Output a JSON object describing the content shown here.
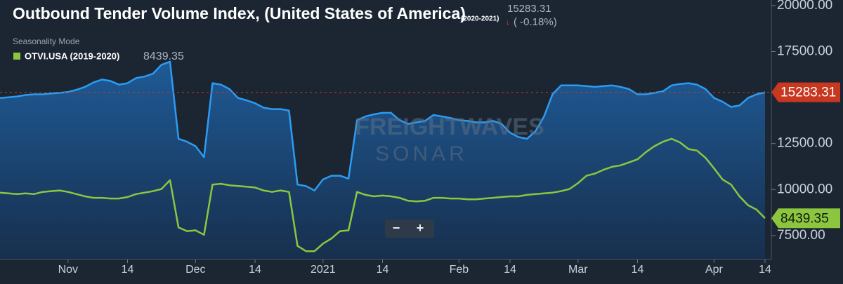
{
  "chart_data": {
    "type": "line",
    "title": "Outbound Tender Volume Index, (United States of America)",
    "title_period": "(2020-2021)",
    "change_label": "( -0.18%)",
    "mode_label": "Seasonality Mode",
    "watermark": [
      "FREIGHTWAVES",
      "SONAR"
    ],
    "zoom_buttons": [
      "−",
      "+"
    ],
    "categories": [
      null,
      null,
      null,
      null,
      null,
      null,
      null,
      null,
      "Nov",
      null,
      null,
      null,
      null,
      null,
      null,
      "14",
      null,
      null,
      null,
      null,
      null,
      null,
      null,
      "Dec",
      null,
      null,
      null,
      null,
      null,
      null,
      "14",
      null,
      null,
      null,
      null,
      null,
      null,
      null,
      "2021",
      null,
      null,
      null,
      null,
      null,
      null,
      "14",
      null,
      null,
      null,
      null,
      null,
      null,
      null,
      null,
      "Feb",
      null,
      null,
      null,
      null,
      null,
      "14",
      null,
      null,
      null,
      null,
      null,
      null,
      null,
      "Mar",
      null,
      null,
      null,
      null,
      null,
      null,
      "14",
      null,
      null,
      null,
      null,
      null,
      null,
      null,
      null,
      "Apr",
      null,
      null,
      null,
      null,
      null,
      "14"
    ],
    "series": [
      {
        "color": "#2b9cf2",
        "fill": true,
        "values": [
          14975,
          15015,
          15055,
          15135,
          15175,
          15175,
          15215,
          15255,
          15300,
          15420,
          15580,
          15820,
          15980,
          15900,
          15700,
          15780,
          16060,
          16140,
          16300,
          16780,
          16950,
          12760,
          12600,
          12360,
          11760,
          15780,
          15700,
          15460,
          14975,
          14850,
          14690,
          14450,
          14370,
          14370,
          14290,
          10270,
          10190,
          9950,
          10550,
          10750,
          10750,
          10590,
          13770,
          13970,
          14090,
          14170,
          14170,
          13770,
          13570,
          13650,
          13730,
          14050,
          13970,
          13890,
          13770,
          13730,
          13650,
          13650,
          13730,
          13570,
          13090,
          12850,
          12760,
          13170,
          13970,
          15175,
          15660,
          15660,
          15660,
          15620,
          15580,
          15620,
          15660,
          15580,
          15460,
          15175,
          15175,
          15255,
          15340,
          15660,
          15740,
          15780,
          15700,
          15460,
          14975,
          14775,
          14490,
          14570,
          14975,
          15175,
          15283.31
        ],
        "tag_color": "#c8371f"
      },
      {
        "name": "OTVI.USA (2019-2020)",
        "color": "#8cc63f",
        "fill": false,
        "values": [
          9830,
          9790,
          9750,
          9790,
          9750,
          9870,
          9910,
          9950,
          9870,
          9750,
          9630,
          9550,
          9550,
          9510,
          9510,
          9590,
          9750,
          9830,
          9910,
          10030,
          10510,
          7940,
          7740,
          7780,
          7540,
          10270,
          10310,
          10230,
          10190,
          10150,
          10110,
          9950,
          9870,
          9950,
          9870,
          6935,
          6650,
          6650,
          7060,
          7340,
          7740,
          7780,
          9870,
          9710,
          9630,
          9670,
          9630,
          9550,
          9390,
          9350,
          9390,
          9550,
          9550,
          9510,
          9510,
          9470,
          9470,
          9510,
          9550,
          9590,
          9630,
          9630,
          9710,
          9750,
          9790,
          9830,
          9910,
          10030,
          10350,
          10750,
          10870,
          11075,
          11235,
          11315,
          11475,
          11640,
          12040,
          12360,
          12600,
          12760,
          12560,
          12200,
          12120,
          11720,
          11155,
          10550,
          10270,
          9630,
          9150,
          8910,
          8439.35
        ],
        "tag_color": "#8cc63f"
      }
    ],
    "ylim": [
      6200,
      20300
    ],
    "yticks": [
      {
        "value": 7500,
        "label": "7500.00"
      },
      {
        "value": 10000,
        "label": "10000.00"
      },
      {
        "value": 12500,
        "label": "12500.00"
      },
      {
        "value": 17500,
        "label": "17500.00"
      },
      {
        "value": 20000,
        "label": "20000.00"
      }
    ],
    "grid": false
  }
}
